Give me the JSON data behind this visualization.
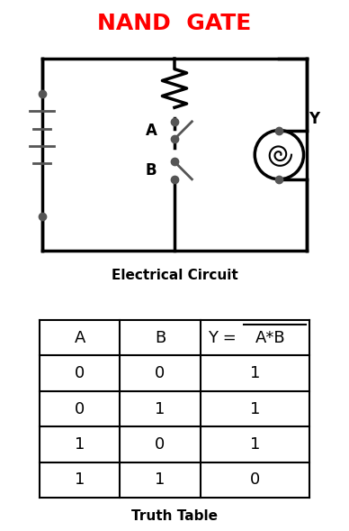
{
  "title": "NAND  GATE",
  "title_color": "#FF0000",
  "subtitle": "Electrical Circuit",
  "table_title": "Truth Table",
  "table_headers": [
    "A",
    "B",
    "Y = A*B"
  ],
  "table_data": [
    [
      "0",
      "0",
      "1"
    ],
    [
      "0",
      "1",
      "1"
    ],
    [
      "1",
      "0",
      "1"
    ],
    [
      "1",
      "1",
      "0"
    ]
  ],
  "bg_color": "#FFFFFF",
  "fg_color": "#000000"
}
